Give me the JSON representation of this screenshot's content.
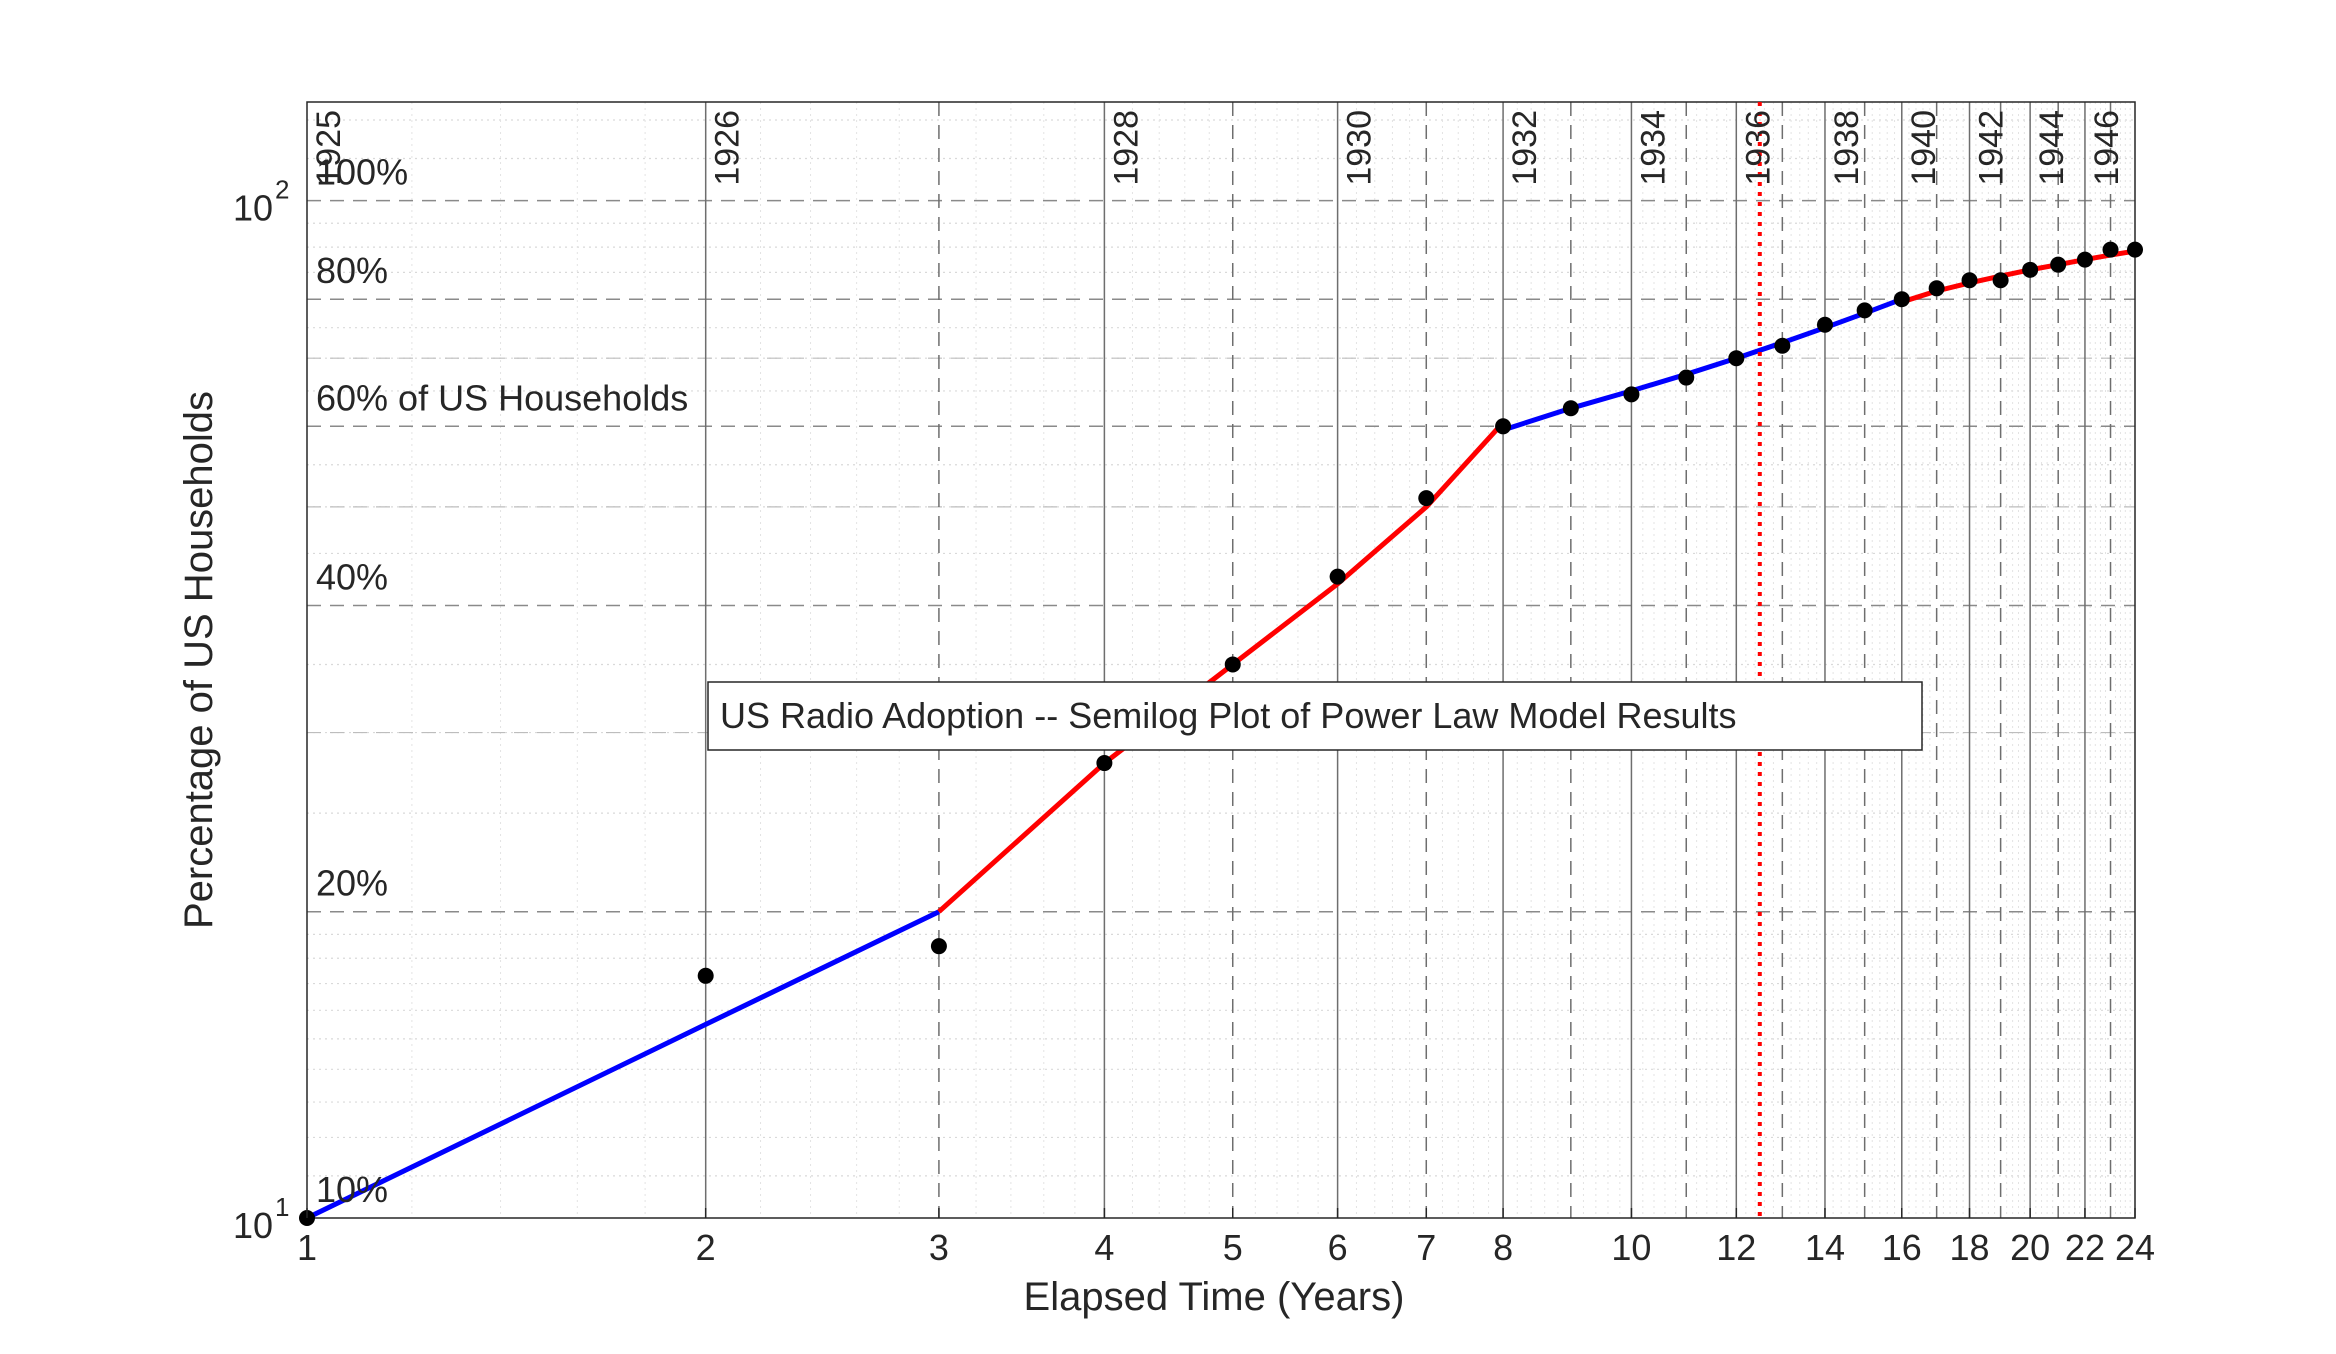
{
  "chart_data": {
    "type": "line",
    "title": "US Radio Adoption -- Semilog Plot of Power Law Model Results",
    "xlabel": "Elapsed Time (Years)",
    "ylabel": "Percentage of US Households",
    "x_scale": "log",
    "y_scale": "log",
    "xlim": [
      1,
      24
    ],
    "ylim": [
      10,
      125
    ],
    "x_tick_labels": [
      "1",
      "2",
      "3",
      "4",
      "5",
      "6",
      "7",
      "8",
      "10",
      "12",
      "14",
      "16",
      "18",
      "20",
      "22",
      "24"
    ],
    "y_tick_labels": [
      {
        "value": 10,
        "base": "10",
        "exp": "1"
      },
      {
        "value": 100,
        "base": "10",
        "exp": "2"
      }
    ],
    "percent_labels": [
      "10%",
      "20%",
      "40%",
      "60% of US Households",
      "80%",
      "100%"
    ],
    "year_labels": [
      "1925",
      "1926",
      "1928",
      "1930",
      "1932",
      "1934",
      "1936",
      "1938",
      "1940",
      "1942",
      "1944",
      "1946"
    ],
    "year_x": [
      1,
      2,
      4,
      6,
      8,
      10,
      12,
      14,
      16,
      18,
      20,
      22
    ],
    "vertical_marker_x": 12.5,
    "points": {
      "x": [
        1,
        2,
        3,
        4,
        5,
        6,
        7,
        8,
        9,
        10,
        11,
        12,
        13,
        14,
        15,
        16,
        17,
        18,
        19,
        20,
        21,
        22,
        23,
        24
      ],
      "y": [
        10,
        17.3,
        18.5,
        28,
        35,
        42.7,
        51,
        60,
        62.5,
        64.5,
        67,
        70,
        72,
        75.5,
        78,
        80,
        82,
        83.5,
        83.5,
        85.5,
        86.5,
        87.5,
        89.5,
        89.5
      ]
    },
    "series": [
      {
        "color": "#0000ff",
        "x": [
          1,
          2,
          3
        ],
        "y": [
          10,
          15.5,
          20
        ]
      },
      {
        "color": "#ff0000",
        "x": [
          3,
          4,
          5,
          6,
          7,
          8
        ],
        "y": [
          20,
          28,
          35,
          42,
          50,
          60.5
        ]
      },
      {
        "color": "#0000ff",
        "x": [
          8,
          9,
          10,
          11,
          12,
          13,
          14,
          15,
          16
        ],
        "y": [
          59.5,
          62.5,
          65,
          67.5,
          70,
          72.5,
          75,
          77.5,
          80
        ]
      },
      {
        "color": "#ff0000",
        "x": [
          16,
          17,
          18,
          19,
          20,
          21,
          22,
          23,
          24
        ],
        "y": [
          79.5,
          81.5,
          83,
          84.3,
          85.5,
          86.5,
          87.5,
          88.4,
          89.2
        ]
      }
    ],
    "grid": true
  }
}
